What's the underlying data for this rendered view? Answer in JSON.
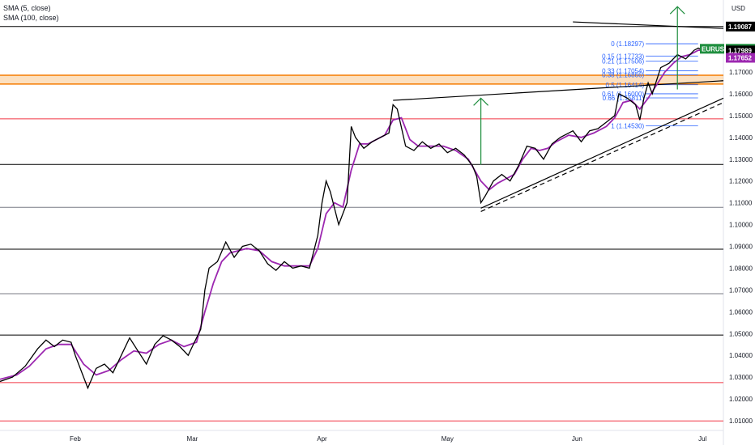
{
  "legend": {
    "sma_fast": "SMA (5, close)",
    "sma_slow": "SMA (100, close)"
  },
  "chart_data": {
    "type": "line",
    "symbol": "EURUSD",
    "currency": "USD",
    "ylim": [
      1.0,
      1.2
    ],
    "y_ticks": [
      "1.01000",
      "1.02000",
      "1.03000",
      "1.04000",
      "1.05000",
      "1.06000",
      "1.07000",
      "1.08000",
      "1.09000",
      "1.10000",
      "1.11000",
      "1.12000",
      "1.13000",
      "1.14000",
      "1.15000",
      "1.16000",
      "1.17000"
    ],
    "x_ticks": [
      {
        "label": "Feb",
        "day": 31
      },
      {
        "label": "Mar",
        "day": 59
      },
      {
        "label": "Apr",
        "day": 90
      },
      {
        "label": "May",
        "day": 120
      },
      {
        "label": "Jun",
        "day": 151
      },
      {
        "label": "Jul",
        "day": 181
      }
    ],
    "xlim_days": [
      13,
      186
    ],
    "price_series": {
      "name": "EURUSD",
      "color": "#000000",
      "points": [
        [
          13,
          1.028
        ],
        [
          16,
          1.03
        ],
        [
          19,
          1.035
        ],
        [
          22,
          1.043
        ],
        [
          24,
          1.047
        ],
        [
          26,
          1.044
        ],
        [
          28,
          1.047
        ],
        [
          30,
          1.046
        ],
        [
          31,
          1.04
        ],
        [
          33,
          1.03
        ],
        [
          34,
          1.025
        ],
        [
          36,
          1.034
        ],
        [
          38,
          1.036
        ],
        [
          40,
          1.032
        ],
        [
          42,
          1.04
        ],
        [
          44,
          1.048
        ],
        [
          46,
          1.042
        ],
        [
          48,
          1.036
        ],
        [
          50,
          1.045
        ],
        [
          52,
          1.049
        ],
        [
          54,
          1.047
        ],
        [
          56,
          1.044
        ],
        [
          58,
          1.04
        ],
        [
          59,
          1.044
        ],
        [
          61,
          1.052
        ],
        [
          62,
          1.07
        ],
        [
          63,
          1.08
        ],
        [
          65,
          1.083
        ],
        [
          67,
          1.092
        ],
        [
          69,
          1.085
        ],
        [
          71,
          1.09
        ],
        [
          73,
          1.091
        ],
        [
          75,
          1.088
        ],
        [
          77,
          1.082
        ],
        [
          79,
          1.079
        ],
        [
          81,
          1.083
        ],
        [
          83,
          1.08
        ],
        [
          85,
          1.081
        ],
        [
          87,
          1.08
        ],
        [
          89,
          1.095
        ],
        [
          90,
          1.11
        ],
        [
          91,
          1.12
        ],
        [
          92,
          1.115
        ],
        [
          94,
          1.1
        ],
        [
          96,
          1.11
        ],
        [
          97,
          1.145
        ],
        [
          98,
          1.14
        ],
        [
          100,
          1.135
        ],
        [
          102,
          1.138
        ],
        [
          104,
          1.14
        ],
        [
          106,
          1.142
        ],
        [
          107,
          1.155
        ],
        [
          108,
          1.153
        ],
        [
          110,
          1.136
        ],
        [
          112,
          1.134
        ],
        [
          114,
          1.138
        ],
        [
          116,
          1.135
        ],
        [
          118,
          1.137
        ],
        [
          120,
          1.133
        ],
        [
          122,
          1.135
        ],
        [
          124,
          1.132
        ],
        [
          126,
          1.127
        ],
        [
          127,
          1.122
        ],
        [
          128,
          1.11
        ],
        [
          129,
          1.113
        ],
        [
          131,
          1.12
        ],
        [
          133,
          1.123
        ],
        [
          135,
          1.12
        ],
        [
          137,
          1.127
        ],
        [
          139,
          1.136
        ],
        [
          141,
          1.135
        ],
        [
          143,
          1.13
        ],
        [
          145,
          1.137
        ],
        [
          147,
          1.14
        ],
        [
          149,
          1.142
        ],
        [
          150,
          1.143
        ],
        [
          152,
          1.138
        ],
        [
          154,
          1.143
        ],
        [
          156,
          1.144
        ],
        [
          158,
          1.147
        ],
        [
          160,
          1.15
        ],
        [
          161,
          1.16
        ],
        [
          163,
          1.158
        ],
        [
          165,
          1.155
        ],
        [
          166,
          1.148
        ],
        [
          167,
          1.158
        ],
        [
          168,
          1.165
        ],
        [
          169,
          1.16
        ],
        [
          171,
          1.172
        ],
        [
          173,
          1.174
        ],
        [
          175,
          1.178
        ],
        [
          177,
          1.176
        ],
        [
          179,
          1.18
        ],
        [
          180,
          1.181
        ],
        [
          181,
          1.18
        ],
        [
          182,
          1.179
        ]
      ]
    },
    "sma_fast_series": {
      "name": "SMA (5, close)",
      "color": "#9c27b0",
      "points": [
        [
          13,
          1.029
        ],
        [
          17,
          1.031
        ],
        [
          20,
          1.035
        ],
        [
          24,
          1.043
        ],
        [
          27,
          1.045
        ],
        [
          30,
          1.045
        ],
        [
          33,
          1.036
        ],
        [
          36,
          1.031
        ],
        [
          39,
          1.033
        ],
        [
          42,
          1.038
        ],
        [
          45,
          1.042
        ],
        [
          48,
          1.041
        ],
        [
          51,
          1.045
        ],
        [
          54,
          1.047
        ],
        [
          57,
          1.044
        ],
        [
          60,
          1.046
        ],
        [
          62,
          1.06
        ],
        [
          64,
          1.073
        ],
        [
          66,
          1.083
        ],
        [
          68,
          1.087
        ],
        [
          70,
          1.088
        ],
        [
          72,
          1.089
        ],
        [
          75,
          1.088
        ],
        [
          78,
          1.083
        ],
        [
          81,
          1.081
        ],
        [
          84,
          1.081
        ],
        [
          87,
          1.081
        ],
        [
          89,
          1.089
        ],
        [
          91,
          1.105
        ],
        [
          93,
          1.11
        ],
        [
          95,
          1.108
        ],
        [
          97,
          1.125
        ],
        [
          99,
          1.137
        ],
        [
          101,
          1.137
        ],
        [
          103,
          1.139
        ],
        [
          105,
          1.141
        ],
        [
          107,
          1.148
        ],
        [
          109,
          1.149
        ],
        [
          111,
          1.139
        ],
        [
          113,
          1.136
        ],
        [
          116,
          1.136
        ],
        [
          119,
          1.136
        ],
        [
          122,
          1.134
        ],
        [
          125,
          1.13
        ],
        [
          128,
          1.12
        ],
        [
          130,
          1.116
        ],
        [
          132,
          1.119
        ],
        [
          134,
          1.121
        ],
        [
          136,
          1.123
        ],
        [
          138,
          1.13
        ],
        [
          140,
          1.135
        ],
        [
          142,
          1.134
        ],
        [
          144,
          1.135
        ],
        [
          146,
          1.138
        ],
        [
          149,
          1.141
        ],
        [
          152,
          1.14
        ],
        [
          155,
          1.142
        ],
        [
          158,
          1.145
        ],
        [
          160,
          1.149
        ],
        [
          162,
          1.156
        ],
        [
          164,
          1.157
        ],
        [
          166,
          1.153
        ],
        [
          168,
          1.158
        ],
        [
          170,
          1.164
        ],
        [
          172,
          1.17
        ],
        [
          174,
          1.174
        ],
        [
          176,
          1.177
        ],
        [
          178,
          1.178
        ],
        [
          180,
          1.18
        ],
        [
          182,
          1.18
        ]
      ]
    },
    "horizontal_levels": [
      {
        "value": 1.19087,
        "color": "#000000"
      },
      {
        "value": 1.1276,
        "color": "#000000"
      },
      {
        "value": 1.0887,
        "color": "#000000"
      },
      {
        "value": 1.1079,
        "color": "#787b86"
      },
      {
        "value": 1.0683,
        "color": "#787b86"
      },
      {
        "value": 1.0493,
        "color": "#000000"
      },
      {
        "value": 1.1485,
        "color": "#f23645"
      },
      {
        "value": 1.0275,
        "color": "#f23645"
      },
      {
        "value": 1.0099,
        "color": "#f23645"
      }
    ],
    "zone": {
      "from": 1.1645,
      "to": 1.1685,
      "color": "#f7a74a"
    },
    "fib_levels": [
      {
        "label": "0 (1.18297)",
        "value": 1.18297
      },
      {
        "label": "0.15 (1.17733)",
        "value": 1.17733
      },
      {
        "label": "0.21 (1.17506)",
        "value": 1.17506
      },
      {
        "label": "0.33 (1.17054)",
        "value": 1.17054
      },
      {
        "label": "0.38 (1.16866)",
        "value": 1.16866
      },
      {
        "label": "0.5 (1.16414)",
        "value": 1.16414
      },
      {
        "label": "0.61 (1.16000)",
        "value": 1.16
      },
      {
        "label": "0.66 (1.15811)",
        "value": 1.15811
      },
      {
        "label": "1 (1.14530)",
        "value": 1.1453
      }
    ],
    "trendlines": [
      {
        "from": [
          107,
          1.157
        ],
        "to": [
          186,
          1.166
        ],
        "style": "solid"
      },
      {
        "from": [
          128,
          1.1075
        ],
        "to": [
          186,
          1.158
        ],
        "style": "solid"
      },
      {
        "from": [
          128,
          1.106
        ],
        "to": [
          186,
          1.156
        ],
        "style": "dashed"
      },
      {
        "from": [
          150,
          1.193
        ],
        "to": [
          186,
          1.19
        ],
        "style": "solid"
      }
    ],
    "arrows": [
      {
        "x": 128,
        "from": 1.1275,
        "to": 1.158,
        "color": "#1e8e3e"
      },
      {
        "x": 175,
        "from": 1.162,
        "to": 1.2,
        "color": "#1e8e3e"
      }
    ],
    "price_tags": [
      {
        "value": 1.19087,
        "label": "1.19087",
        "color": "#000000"
      },
      {
        "value": 1.18066,
        "label": "1.18066",
        "color": "#1e8e3e",
        "title": "EURUSD"
      },
      {
        "value": 1.17989,
        "label": "1.17989",
        "color": "#000000"
      },
      {
        "value": 1.17652,
        "label": "1.17652",
        "color": "#9c27b0"
      }
    ]
  }
}
